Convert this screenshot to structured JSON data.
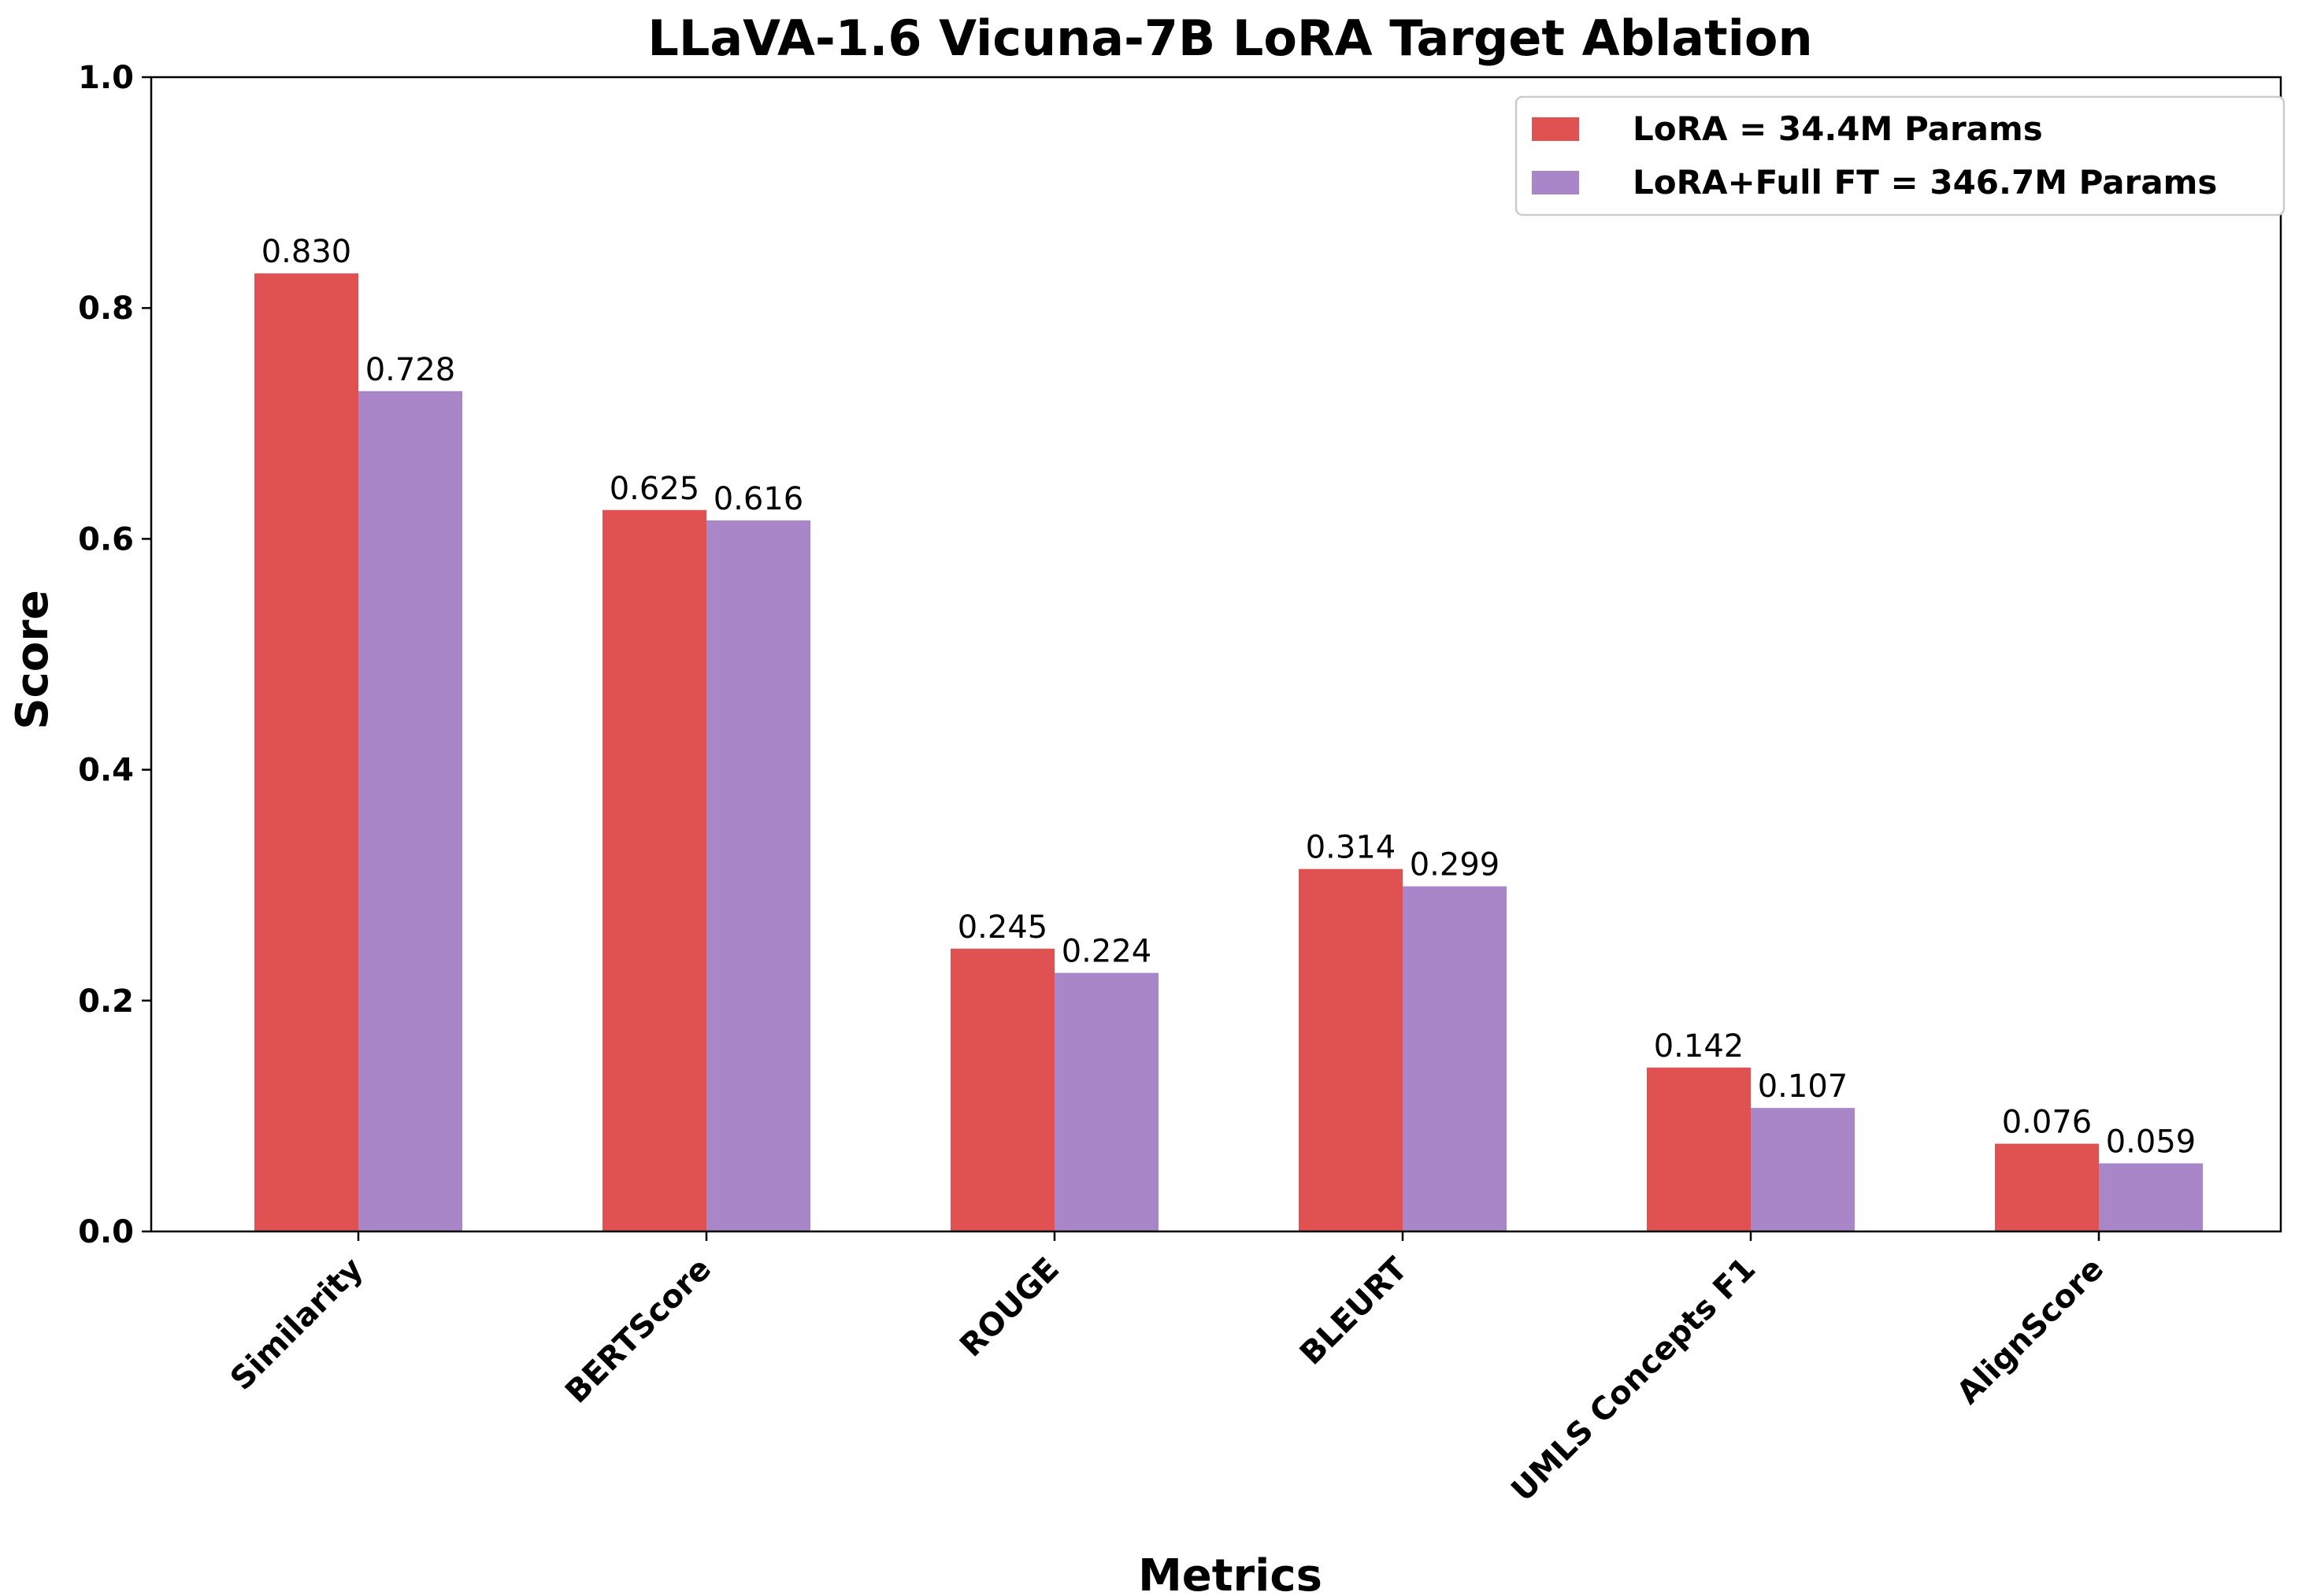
{
  "chart_data": {
    "type": "bar",
    "title": "LLaVA-1.6 Vicuna-7B LoRA Target Ablation",
    "xlabel": "Metrics",
    "ylabel": "Score",
    "ylim": [
      0,
      1.0
    ],
    "yticks": [
      "0.0",
      "0.2",
      "0.4",
      "0.6",
      "0.8",
      "1.0"
    ],
    "categories": [
      "Similarity",
      "BERTScore",
      "ROUGE",
      "BLEURT",
      "UMLS Concepts F1",
      "AlignScore"
    ],
    "legend_position": "top-right",
    "series": [
      {
        "name": "LoRA = 34.4M Params",
        "color": "#e05252",
        "values": [
          0.83,
          0.625,
          0.245,
          0.314,
          0.142,
          0.076
        ],
        "labels": [
          "0.830",
          "0.625",
          "0.245",
          "0.314",
          "0.142",
          "0.076"
        ]
      },
      {
        "name": "LoRA+Full FT = 346.7M Params",
        "color": "#a886c8",
        "values": [
          0.728,
          0.616,
          0.224,
          0.299,
          0.107,
          0.059
        ],
        "labels": [
          "0.728",
          "0.616",
          "0.224",
          "0.299",
          "0.107",
          "0.059"
        ]
      }
    ]
  }
}
